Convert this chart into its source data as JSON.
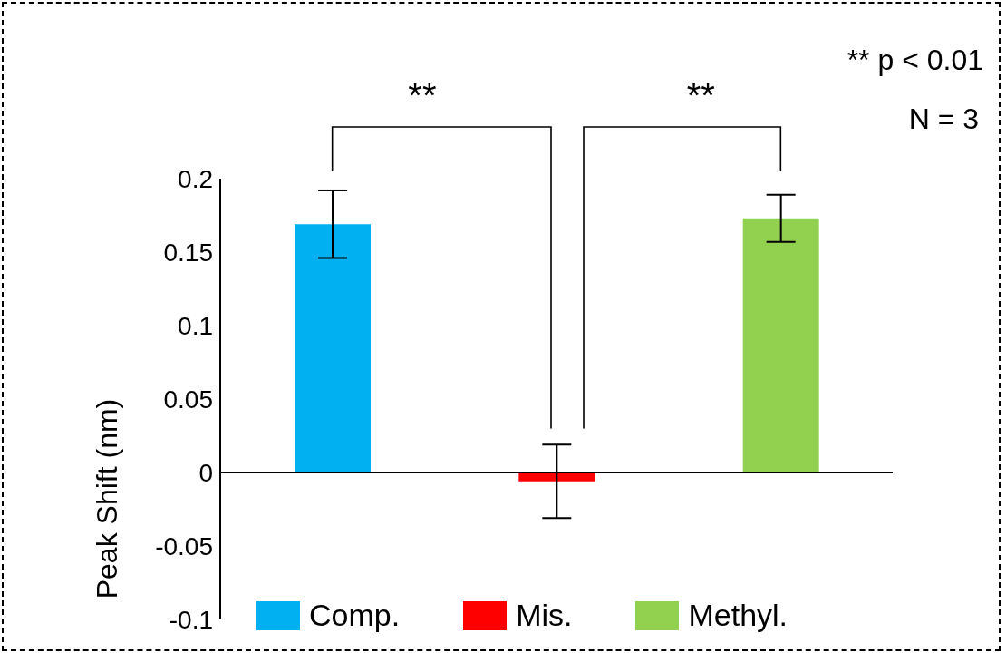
{
  "chart_data": {
    "type": "bar",
    "ylabel": "Peak Shift (nm)",
    "categories": [
      null,
      null,
      null
    ],
    "series": [
      {
        "name": "Comp.",
        "color": "#00b0f0",
        "values": [
          0.169,
          null,
          null
        ],
        "errors": [
          0.023,
          null,
          null
        ]
      },
      {
        "name": "Mis.",
        "color": "#ff0000",
        "values": [
          null,
          -0.006,
          null
        ],
        "errors": [
          null,
          0.025,
          null
        ]
      },
      {
        "name": "Methyl.",
        "color": "#92d050",
        "values": [
          null,
          null,
          0.173
        ],
        "errors": [
          null,
          null,
          0.016
        ]
      }
    ],
    "ylim": [
      -0.1,
      0.2
    ],
    "yticks": [
      -0.1,
      -0.05,
      0,
      0.05,
      0.1,
      0.15,
      0.2
    ],
    "legend": "bottom",
    "annotations": [
      "**",
      "**",
      "** p < 0.01",
      "N = 3"
    ]
  }
}
